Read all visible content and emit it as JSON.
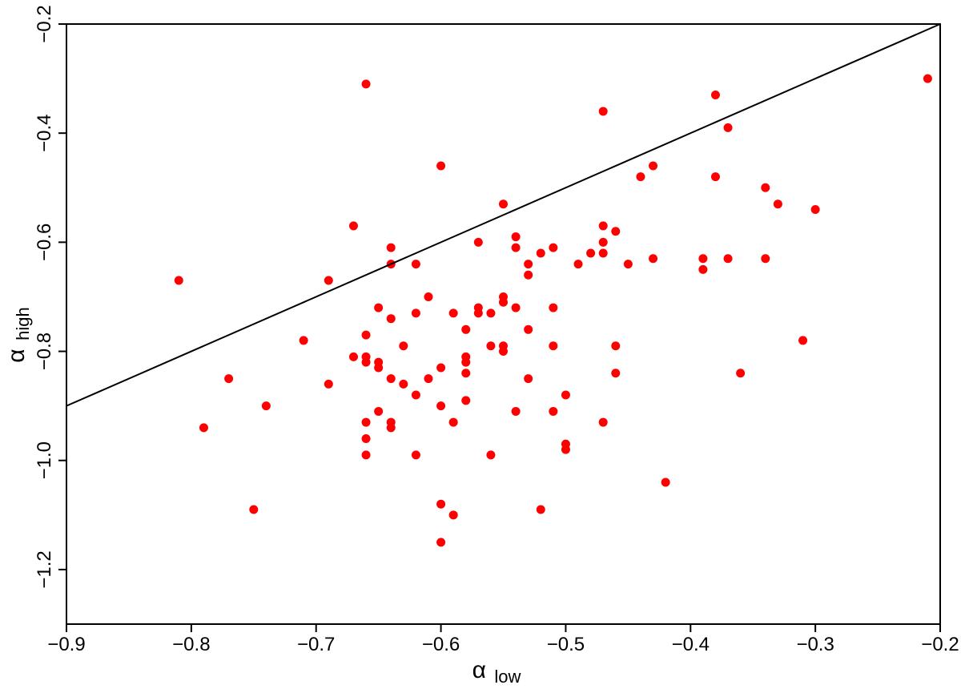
{
  "chart_data": {
    "type": "scatter",
    "xlabel": {
      "symbol": "α",
      "subscript": "low"
    },
    "ylabel": {
      "symbol": "α",
      "subscript": "high"
    },
    "xlim": [
      -0.9,
      -0.2
    ],
    "ylim": [
      -1.3,
      -0.2
    ],
    "x_ticks": [
      -0.9,
      -0.8,
      -0.7,
      -0.6,
      -0.5,
      -0.4,
      -0.3,
      -0.2
    ],
    "x_tick_labels": [
      "−0.9",
      "−0.8",
      "−0.7",
      "−0.6",
      "−0.5",
      "−0.4",
      "−0.3",
      "−0.2"
    ],
    "y_ticks": [
      -1.2,
      -1.0,
      -0.8,
      -0.6,
      -0.4,
      -0.2
    ],
    "y_tick_labels": [
      "−1.2",
      "−1.0",
      "−0.8",
      "−0.6",
      "−0.4",
      "−0.2"
    ],
    "grid": false,
    "point_color": "#ff0000",
    "line_color": "#000000",
    "reference_line": {
      "x": [
        -0.9,
        -0.2
      ],
      "y": [
        -0.9,
        -0.2
      ]
    },
    "points": [
      [
        -0.81,
        -0.67
      ],
      [
        -0.79,
        -0.94
      ],
      [
        -0.77,
        -0.85
      ],
      [
        -0.75,
        -1.09
      ],
      [
        -0.74,
        -0.9
      ],
      [
        -0.71,
        -0.78
      ],
      [
        -0.69,
        -0.67
      ],
      [
        -0.69,
        -0.86
      ],
      [
        -0.67,
        -0.57
      ],
      [
        -0.67,
        -0.81
      ],
      [
        -0.66,
        -0.31
      ],
      [
        -0.66,
        -0.77
      ],
      [
        -0.66,
        -0.81
      ],
      [
        -0.66,
        -0.82
      ],
      [
        -0.66,
        -0.93
      ],
      [
        -0.66,
        -0.96
      ],
      [
        -0.66,
        -0.99
      ],
      [
        -0.65,
        -0.72
      ],
      [
        -0.65,
        -0.82
      ],
      [
        -0.65,
        -0.83
      ],
      [
        -0.65,
        -0.91
      ],
      [
        -0.64,
        -0.61
      ],
      [
        -0.64,
        -0.64
      ],
      [
        -0.64,
        -0.74
      ],
      [
        -0.64,
        -0.85
      ],
      [
        -0.64,
        -0.93
      ],
      [
        -0.64,
        -0.94
      ],
      [
        -0.63,
        -0.79
      ],
      [
        -0.63,
        -0.86
      ],
      [
        -0.62,
        -0.64
      ],
      [
        -0.62,
        -0.73
      ],
      [
        -0.62,
        -0.88
      ],
      [
        -0.62,
        -0.99
      ],
      [
        -0.61,
        -0.7
      ],
      [
        -0.61,
        -0.85
      ],
      [
        -0.6,
        -0.46
      ],
      [
        -0.6,
        -0.83
      ],
      [
        -0.6,
        -0.9
      ],
      [
        -0.6,
        -1.08
      ],
      [
        -0.6,
        -1.15
      ],
      [
        -0.59,
        -0.73
      ],
      [
        -0.59,
        -0.93
      ],
      [
        -0.59,
        -1.1
      ],
      [
        -0.58,
        -0.76
      ],
      [
        -0.58,
        -0.81
      ],
      [
        -0.58,
        -0.82
      ],
      [
        -0.58,
        -0.84
      ],
      [
        -0.58,
        -0.89
      ],
      [
        -0.57,
        -0.6
      ],
      [
        -0.57,
        -0.72
      ],
      [
        -0.57,
        -0.73
      ],
      [
        -0.56,
        -0.73
      ],
      [
        -0.56,
        -0.79
      ],
      [
        -0.56,
        -0.99
      ],
      [
        -0.55,
        -0.53
      ],
      [
        -0.55,
        -0.7
      ],
      [
        -0.55,
        -0.71
      ],
      [
        -0.55,
        -0.79
      ],
      [
        -0.55,
        -0.8
      ],
      [
        -0.54,
        -0.59
      ],
      [
        -0.54,
        -0.61
      ],
      [
        -0.54,
        -0.72
      ],
      [
        -0.54,
        -0.91
      ],
      [
        -0.53,
        -0.64
      ],
      [
        -0.53,
        -0.66
      ],
      [
        -0.53,
        -0.76
      ],
      [
        -0.53,
        -0.85
      ],
      [
        -0.52,
        -0.62
      ],
      [
        -0.52,
        -1.09
      ],
      [
        -0.51,
        -0.61
      ],
      [
        -0.51,
        -0.72
      ],
      [
        -0.51,
        -0.79
      ],
      [
        -0.51,
        -0.91
      ],
      [
        -0.5,
        -0.88
      ],
      [
        -0.5,
        -0.97
      ],
      [
        -0.5,
        -0.98
      ],
      [
        -0.49,
        -0.64
      ],
      [
        -0.48,
        -0.62
      ],
      [
        -0.47,
        -0.36
      ],
      [
        -0.47,
        -0.57
      ],
      [
        -0.47,
        -0.6
      ],
      [
        -0.47,
        -0.62
      ],
      [
        -0.47,
        -0.93
      ],
      [
        -0.46,
        -0.58
      ],
      [
        -0.46,
        -0.79
      ],
      [
        -0.46,
        -0.84
      ],
      [
        -0.45,
        -0.64
      ],
      [
        -0.44,
        -0.48
      ],
      [
        -0.43,
        -0.46
      ],
      [
        -0.43,
        -0.63
      ],
      [
        -0.42,
        -1.04
      ],
      [
        -0.39,
        -0.63
      ],
      [
        -0.39,
        -0.65
      ],
      [
        -0.38,
        -0.33
      ],
      [
        -0.38,
        -0.48
      ],
      [
        -0.37,
        -0.39
      ],
      [
        -0.37,
        -0.63
      ],
      [
        -0.36,
        -0.84
      ],
      [
        -0.34,
        -0.5
      ],
      [
        -0.34,
        -0.63
      ],
      [
        -0.33,
        -0.53
      ],
      [
        -0.31,
        -0.78
      ],
      [
        -0.3,
        -0.54
      ],
      [
        -0.21,
        -0.3
      ]
    ]
  }
}
